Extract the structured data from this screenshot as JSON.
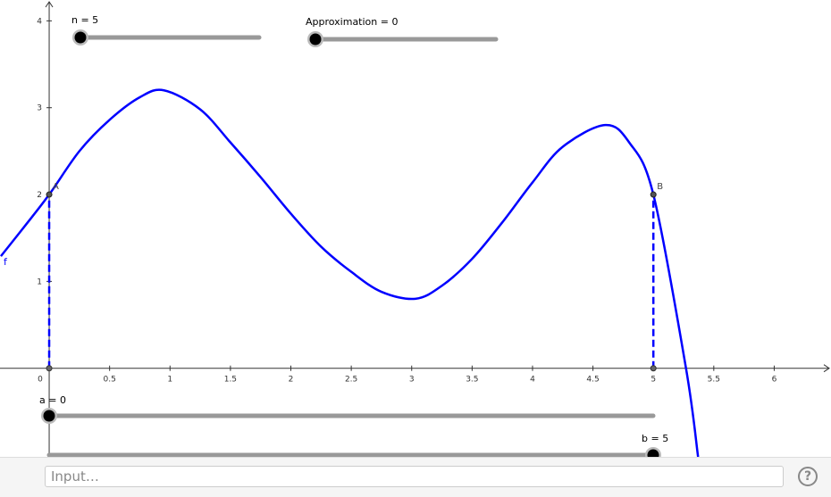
{
  "graph": {
    "xlim": [
      -0.407,
      6.47
    ],
    "ylim": [
      -1.02,
      4.24
    ],
    "xticks": [
      0,
      0.5,
      1,
      1.5,
      2,
      2.5,
      3,
      3.5,
      4,
      4.5,
      5,
      5.5,
      6
    ],
    "yticks": [
      1,
      2,
      3,
      4
    ],
    "function": {
      "label": "f",
      "color": "#0000ff",
      "x": [
        -0.4,
        -0.2,
        0,
        0.25,
        0.5,
        0.75,
        0.95,
        1.25,
        1.5,
        1.75,
        2,
        2.25,
        2.5,
        2.75,
        3.03,
        3.25,
        3.5,
        3.75,
        4,
        4.25,
        4.6,
        4.8,
        5,
        5.27,
        5.37
      ],
      "y": [
        1.29,
        1.64,
        2,
        2.5,
        2.86,
        3.12,
        3.2,
        2.98,
        2.6,
        2.2,
        1.78,
        1.4,
        1.11,
        0.88,
        0.8,
        0.95,
        1.26,
        1.68,
        2.14,
        2.55,
        2.8,
        2.6,
        2,
        0,
        -1.02
      ]
    },
    "points": [
      {
        "label": "A",
        "x": 0,
        "y": 2
      },
      {
        "label": "B",
        "x": 5,
        "y": 2
      }
    ],
    "sliders": [
      {
        "label": "n = 5"
      },
      {
        "label": "Approximation = 0"
      },
      {
        "label": "a = 0"
      },
      {
        "label": "b = 5"
      }
    ]
  },
  "input": {
    "placeholder": "Input…"
  },
  "help": "?"
}
